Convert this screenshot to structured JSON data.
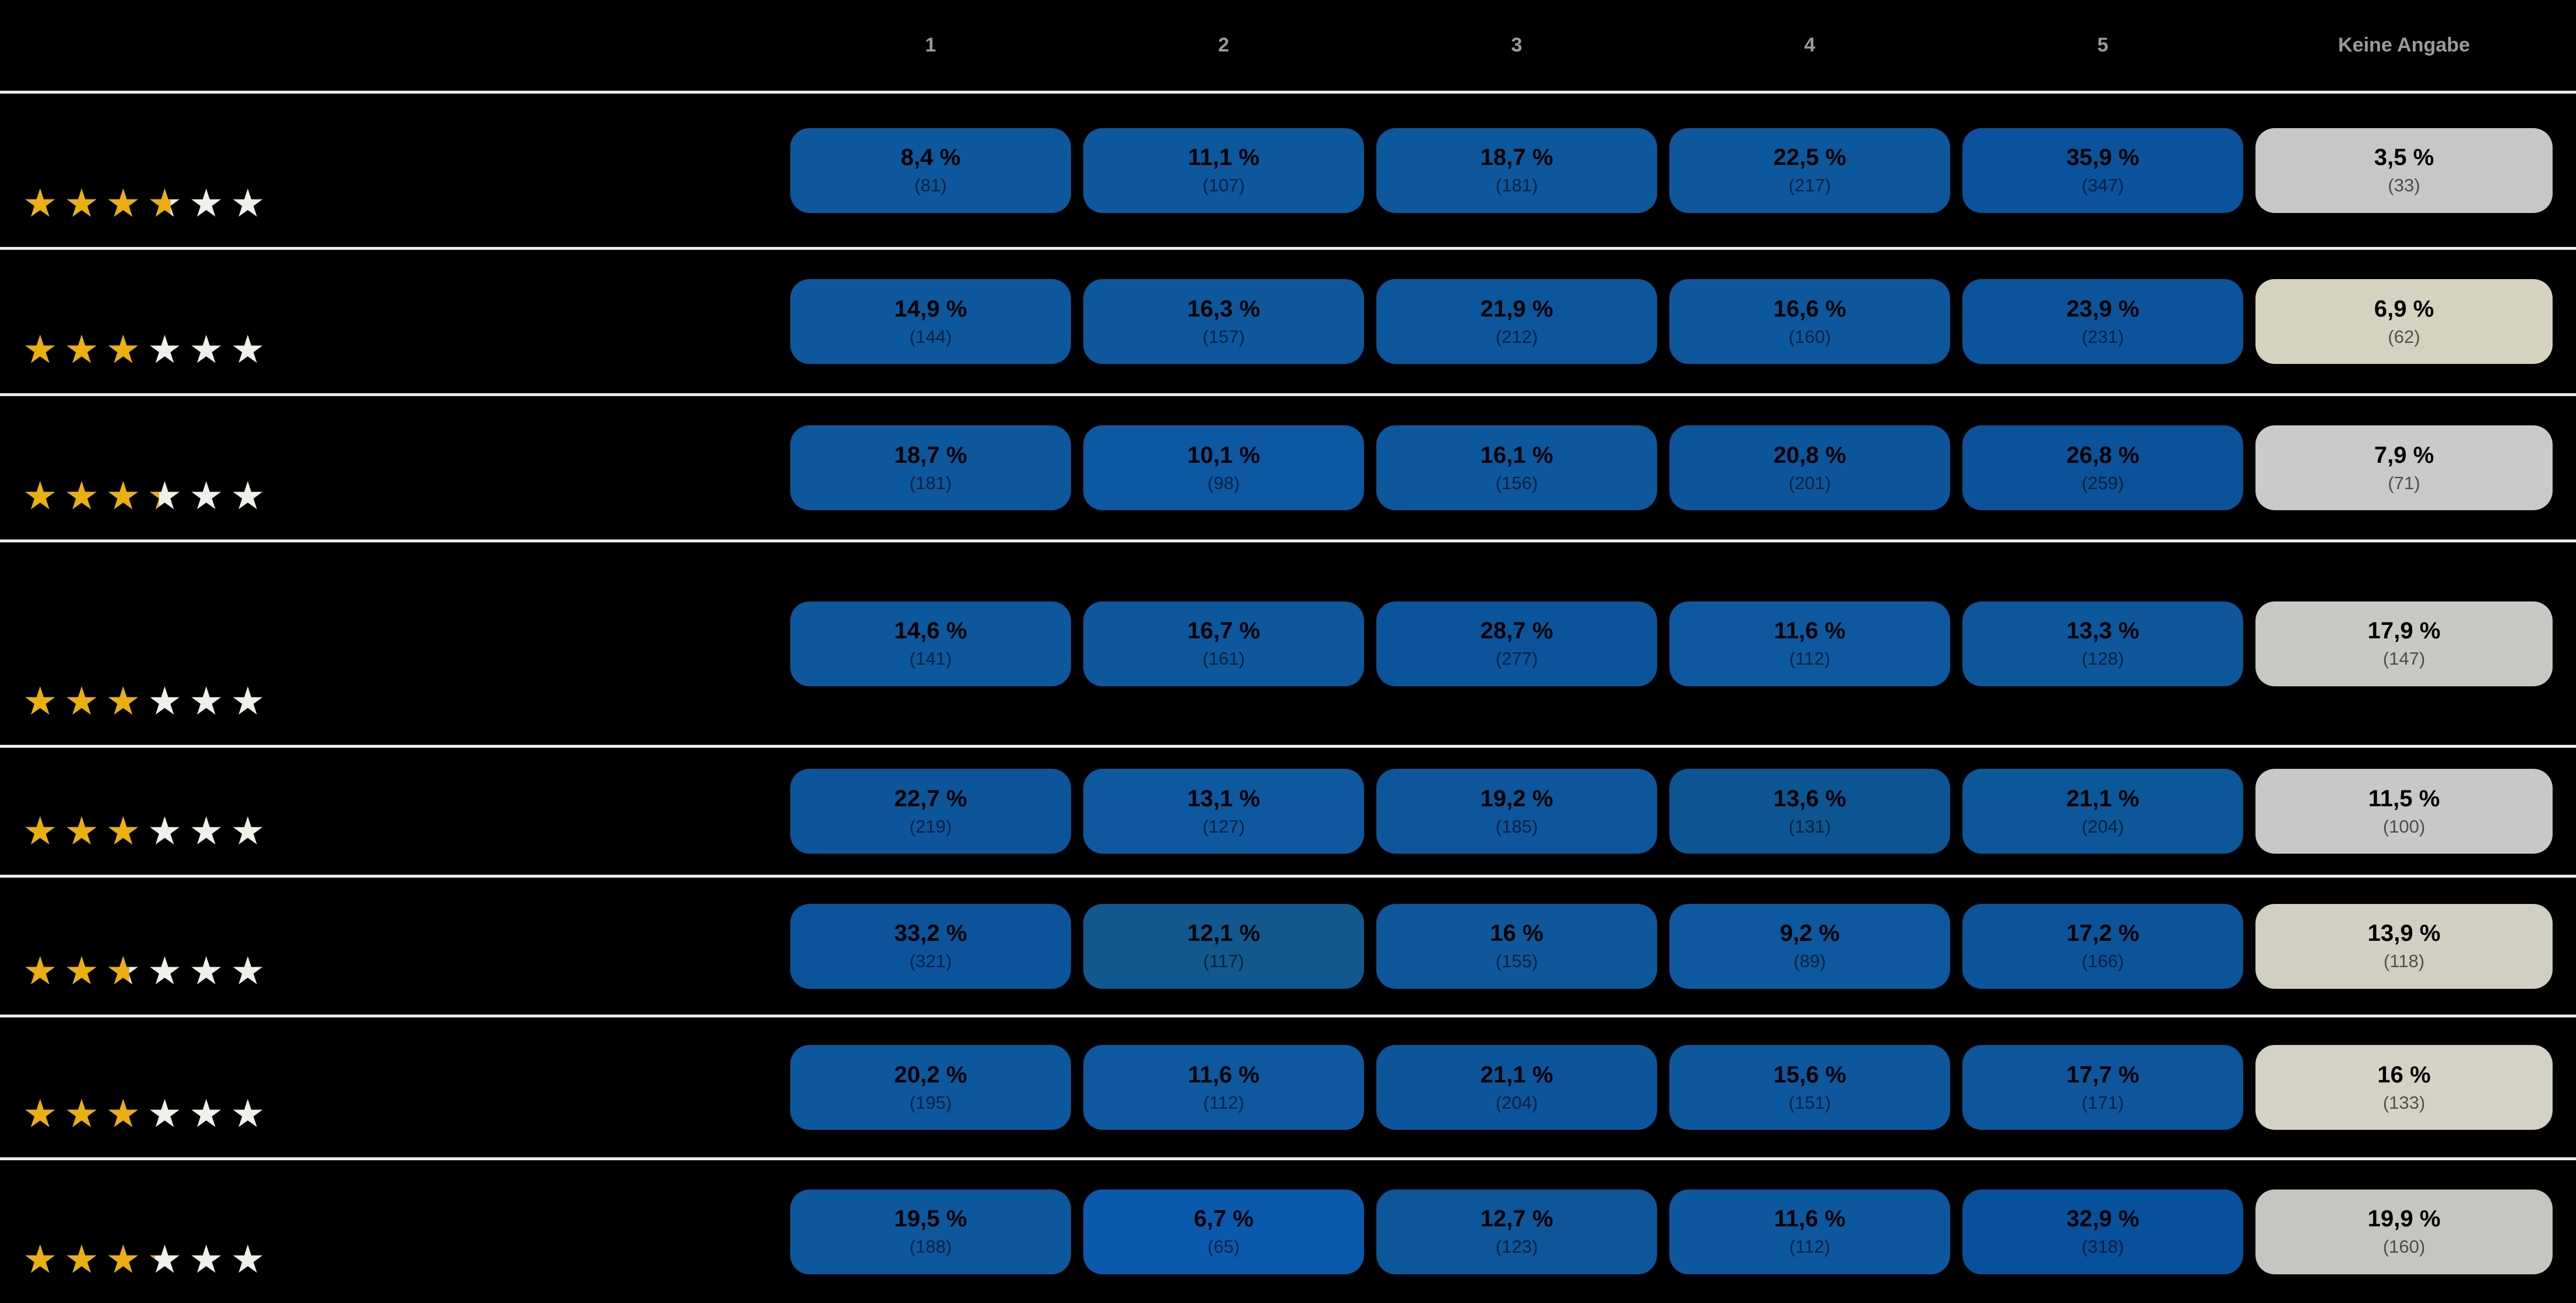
{
  "header": {
    "columns": [
      "1",
      "2",
      "3",
      "4",
      "5",
      "Keine Angabe"
    ]
  },
  "colors": {
    "background": "#000000",
    "separator": "#ebebe9",
    "header_text": "#9b9b9b",
    "percentage_text": "#000000",
    "count_text": "rgba(0,0,0,0.62)",
    "star_gold": "#ebb00f",
    "star_empty": "#f0efe9"
  },
  "rows": [
    {
      "stars": 3.6,
      "cells": [
        {
          "pct": "8,4 %",
          "count": "(81)",
          "bg": "#0d579d"
        },
        {
          "pct": "11,1 %",
          "count": "(107)",
          "bg": "#0d579d"
        },
        {
          "pct": "18,7 %",
          "count": "(181)",
          "bg": "#0d579d"
        },
        {
          "pct": "22,5 %",
          "count": "(217)",
          "bg": "#0d579d"
        },
        {
          "pct": "35,9 %",
          "count": "(347)",
          "bg": "#0a539c"
        },
        {
          "pct": "3,5 %",
          "count": "(33)",
          "bg": "#c7c7c7"
        }
      ]
    },
    {
      "stars": 3.08,
      "cells": [
        {
          "pct": "14,9 %",
          "count": "(144)",
          "bg": "#0d579d"
        },
        {
          "pct": "16,3 %",
          "count": "(157)",
          "bg": "#0d579d"
        },
        {
          "pct": "21,9 %",
          "count": "(212)",
          "bg": "#0c569c"
        },
        {
          "pct": "16,6 %",
          "count": "(160)",
          "bg": "#0d579d"
        },
        {
          "pct": "23,9 %",
          "count": "(231)",
          "bg": "#0b549c"
        },
        {
          "pct": "6,9 %",
          "count": "(62)",
          "bg": "#d5d3bf"
        }
      ]
    },
    {
      "stars": 3.3,
      "cells": [
        {
          "pct": "18,7 %",
          "count": "(181)",
          "bg": "#0d579d"
        },
        {
          "pct": "10,1 %",
          "count": "(98)",
          "bg": "#0c58a2"
        },
        {
          "pct": "16,1 %",
          "count": "(156)",
          "bg": "#0d579d"
        },
        {
          "pct": "20,8 %",
          "count": "(201)",
          "bg": "#0c559b"
        },
        {
          "pct": "26,8 %",
          "count": "(259)",
          "bg": "#0a539a"
        },
        {
          "pct": "7,9 %",
          "count": "(71)",
          "bg": "#cbcac8"
        }
      ]
    },
    {
      "stars": 3.12,
      "cells": [
        {
          "pct": "14,6 %",
          "count": "(141)",
          "bg": "#0d579d"
        },
        {
          "pct": "16,7 %",
          "count": "(161)",
          "bg": "#0d579d"
        },
        {
          "pct": "28,7 %",
          "count": "(277)",
          "bg": "#0b549c"
        },
        {
          "pct": "11,6 %",
          "count": "(112)",
          "bg": "#0e58a0"
        },
        {
          "pct": "13,3 %",
          "count": "(128)",
          "bg": "#0e579b"
        },
        {
          "pct": "17,9 %",
          "count": "(147)",
          "bg": "#c9c8c4"
        }
      ]
    },
    {
      "stars": 3.0,
      "cells": [
        {
          "pct": "22,7 %",
          "count": "(219)",
          "bg": "#0c559b"
        },
        {
          "pct": "13,1 %",
          "count": "(127)",
          "bg": "#0e58a0"
        },
        {
          "pct": "19,2 %",
          "count": "(185)",
          "bg": "#0d569b"
        },
        {
          "pct": "13,6 %",
          "count": "(131)",
          "bg": "#0b5592"
        },
        {
          "pct": "21,1 %",
          "count": "(204)",
          "bg": "#0c569a"
        },
        {
          "pct": "11,5 %",
          "count": "(100)",
          "bg": "#c8c8c6"
        }
      ]
    },
    {
      "stars": 2.6,
      "cells": [
        {
          "pct": "33,2 %",
          "count": "(321)",
          "bg": "#0b549c"
        },
        {
          "pct": "12,1 %",
          "count": "(117)",
          "bg": "#11588e"
        },
        {
          "pct": "16 %",
          "count": "(155)",
          "bg": "#0e579a"
        },
        {
          "pct": "9,2 %",
          "count": "(89)",
          "bg": "#0d589e"
        },
        {
          "pct": "17,2 %",
          "count": "(166)",
          "bg": "#0b549a"
        },
        {
          "pct": "13,9 %",
          "count": "(118)",
          "bg": "#d1cfc2"
        }
      ]
    },
    {
      "stars": 3.0,
      "cells": [
        {
          "pct": "20,2 %",
          "count": "(195)",
          "bg": "#0d579d"
        },
        {
          "pct": "11,6 %",
          "count": "(112)",
          "bg": "#0e58a0"
        },
        {
          "pct": "21,1 %",
          "count": "(204)",
          "bg": "#0c559b"
        },
        {
          "pct": "15,6 %",
          "count": "(151)",
          "bg": "#0d579d"
        },
        {
          "pct": "17,7 %",
          "count": "(171)",
          "bg": "#0d569b"
        },
        {
          "pct": "16 %",
          "count": "(133)",
          "bg": "#d4d2c4"
        }
      ]
    },
    {
      "stars": 3.2,
      "cells": [
        {
          "pct": "19,5 %",
          "count": "(188)",
          "bg": "#0d579d"
        },
        {
          "pct": "6,7 %",
          "count": "(65)",
          "bg": "#0a59ac"
        },
        {
          "pct": "12,7 %",
          "count": "(123)",
          "bg": "#0c5699"
        },
        {
          "pct": "11,6 %",
          "count": "(112)",
          "bg": "#0d579e"
        },
        {
          "pct": "32,9 %",
          "count": "(318)",
          "bg": "#07509b"
        },
        {
          "pct": "19,9 %",
          "count": "(160)",
          "bg": "#c5c6c1"
        }
      ]
    }
  ],
  "chart_data": {
    "type": "heatmap",
    "columns": [
      "1",
      "2",
      "3",
      "4",
      "5",
      "Keine Angabe"
    ],
    "rows": [
      {
        "star_rating": 3.6,
        "values_pct": [
          8.4,
          11.1,
          18.7,
          22.5,
          35.9,
          3.5
        ],
        "counts": [
          81,
          107,
          181,
          217,
          347,
          33
        ]
      },
      {
        "star_rating": 3.08,
        "values_pct": [
          14.9,
          16.3,
          21.9,
          16.6,
          23.9,
          6.9
        ],
        "counts": [
          144,
          157,
          212,
          160,
          231,
          62
        ]
      },
      {
        "star_rating": 3.3,
        "values_pct": [
          18.7,
          10.1,
          16.1,
          20.8,
          26.8,
          7.9
        ],
        "counts": [
          181,
          98,
          156,
          201,
          259,
          71
        ]
      },
      {
        "star_rating": 3.12,
        "values_pct": [
          14.6,
          16.7,
          28.7,
          11.6,
          13.3,
          17.9
        ],
        "counts": [
          141,
          161,
          277,
          112,
          128,
          147
        ]
      },
      {
        "star_rating": 3.0,
        "values_pct": [
          22.7,
          13.1,
          19.2,
          13.6,
          21.1,
          11.5
        ],
        "counts": [
          219,
          127,
          185,
          131,
          204,
          100
        ]
      },
      {
        "star_rating": 2.6,
        "values_pct": [
          33.2,
          12.1,
          16.0,
          9.2,
          17.2,
          13.9
        ],
        "counts": [
          321,
          117,
          155,
          89,
          166,
          118
        ]
      },
      {
        "star_rating": 3.0,
        "values_pct": [
          20.2,
          11.6,
          21.1,
          15.6,
          17.7,
          16.0
        ],
        "counts": [
          195,
          112,
          204,
          151,
          171,
          133
        ]
      },
      {
        "star_rating": 3.2,
        "values_pct": [
          19.5,
          6.7,
          12.7,
          11.6,
          32.9,
          19.9
        ],
        "counts": [
          188,
          65,
          123,
          112,
          318,
          160
        ]
      }
    ],
    "title": "",
    "legend_position": "none",
    "grid": false
  }
}
